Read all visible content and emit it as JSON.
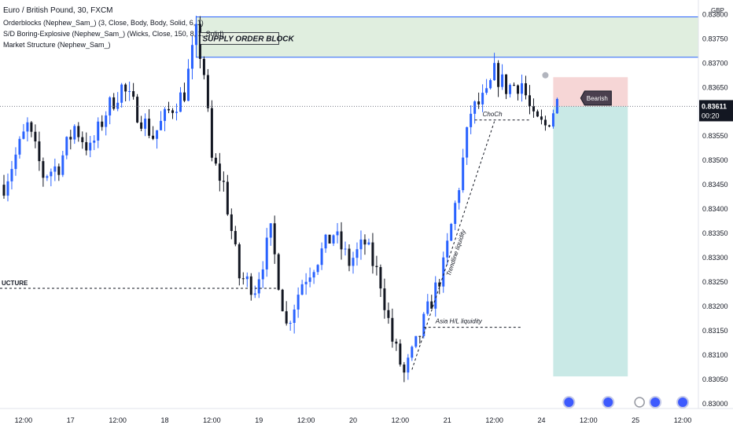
{
  "legend": {
    "title": "Euro / British Pound, 30, FXCM",
    "indicators": [
      "Orderblocks (Nephew_Sam_) (3, Close, Body, Body, Solid, 6, 1)",
      "S/D Boring-Explosive (Nephew_Sam_) (Wicks, Close, 150, 8, 1, Solid)",
      "Market Structure (Nephew_Sam_)"
    ]
  },
  "annotations": {
    "supply_block": "SUPPLY ORDER BLOCK",
    "structure": "UCTURE",
    "choch": "ChoCh",
    "trendline": "Trendline liquidity",
    "asia": "Asia H/L liquidity",
    "bearish": "Bearish"
  },
  "price_axis": {
    "currency": "GBP",
    "current_price": "0.83611",
    "countdown": "00:20"
  },
  "colors": {
    "bull": "#2962ff",
    "bear": "#131722",
    "supply_zone": "#d5e8d4",
    "stop_zone": "#f2c4c4",
    "target_zone": "#b2e0dc",
    "axis_text": "#131722"
  },
  "chart_data": {
    "type": "candlestick",
    "title": "Euro / British Pound, 30, FXCM",
    "y_ticks": [
      0.83,
      0.8305,
      0.831,
      0.8315,
      0.832,
      0.8325,
      0.833,
      0.8335,
      0.834,
      0.8345,
      0.835,
      0.8355,
      0.836,
      0.8365,
      0.837,
      0.8375,
      0.838
    ],
    "y_tick_labels": [
      "0.83000",
      "0.83050",
      "0.83100",
      "0.83150",
      "0.83200",
      "0.83250",
      "0.83300",
      "0.83350",
      "0.83400",
      "0.83450",
      "0.83500",
      "0.83550",
      "0.83600",
      "0.83650",
      "0.83700",
      "0.83750",
      "0.83800"
    ],
    "ylim": [
      0.8299,
      0.8382
    ],
    "x_ticks": [
      {
        "label": "12:00",
        "idx": 5
      },
      {
        "label": "17",
        "idx": 17
      },
      {
        "label": "12:00",
        "idx": 29
      },
      {
        "label": "18",
        "idx": 41
      },
      {
        "label": "12:00",
        "idx": 53
      },
      {
        "label": "19",
        "idx": 65
      },
      {
        "label": "12:00",
        "idx": 77
      },
      {
        "label": "20",
        "idx": 89
      },
      {
        "label": "12:00",
        "idx": 101
      },
      {
        "label": "21",
        "idx": 113
      },
      {
        "label": "12:00",
        "idx": 125
      },
      {
        "label": "24",
        "idx": 137
      },
      {
        "label": "12:00",
        "idx": 149
      },
      {
        "label": "25",
        "idx": 161
      },
      {
        "label": "12:00",
        "idx": 173
      }
    ],
    "x_extent": [
      -1,
      177
    ],
    "price_path": [
      [
        0,
        0.8345
      ],
      [
        6,
        0.8357
      ],
      [
        10,
        0.8347
      ],
      [
        14,
        0.8349
      ],
      [
        18,
        0.8357
      ],
      [
        22,
        0.8352
      ],
      [
        26,
        0.836
      ],
      [
        30,
        0.8365
      ],
      [
        34,
        0.836
      ],
      [
        38,
        0.8355
      ],
      [
        42,
        0.836
      ],
      [
        46,
        0.8364
      ],
      [
        49,
        0.8376
      ],
      [
        51,
        0.8368
      ],
      [
        53,
        0.835
      ],
      [
        56,
        0.8345
      ],
      [
        60,
        0.8326
      ],
      [
        64,
        0.8324
      ],
      [
        68,
        0.8335
      ],
      [
        72,
        0.8316
      ],
      [
        76,
        0.8325
      ],
      [
        80,
        0.833
      ],
      [
        84,
        0.8335
      ],
      [
        88,
        0.8329
      ],
      [
        92,
        0.8333
      ],
      [
        96,
        0.8325
      ],
      [
        99,
        0.8313
      ],
      [
        102,
        0.8306
      ],
      [
        105,
        0.8312
      ],
      [
        108,
        0.8319
      ],
      [
        112,
        0.8328
      ],
      [
        116,
        0.8345
      ],
      [
        119,
        0.836
      ],
      [
        123,
        0.8363
      ],
      [
        125,
        0.8368
      ],
      [
        128,
        0.8365
      ],
      [
        132,
        0.8366
      ],
      [
        135,
        0.8358
      ],
      [
        138,
        0.8357
      ],
      [
        141,
        0.8362
      ]
    ],
    "zones": [
      {
        "name": "supply-order-block",
        "x": [
          49,
          177
        ],
        "y": [
          0.83712,
          0.83795
        ]
      },
      {
        "name": "stop-zone",
        "x": [
          140,
          159
        ],
        "y": [
          0.83611,
          0.83671
        ]
      },
      {
        "name": "target-zone",
        "x": [
          140,
          159
        ],
        "y": [
          0.83056,
          0.83611
        ]
      }
    ],
    "levels": [
      {
        "name": "structure-level",
        "price": 0.83237,
        "x": [
          -1,
          70
        ]
      },
      {
        "name": "asia-liquidity-level",
        "price": 0.83157,
        "x": [
          107,
          132
        ]
      },
      {
        "name": "choch-level",
        "price": 0.83583,
        "x": [
          120,
          134
        ]
      },
      {
        "name": "current-price-line",
        "price": 0.83611,
        "x": [
          -1,
          177
        ]
      }
    ],
    "trendline": {
      "from": [
        104,
        0.8307
      ],
      "to": [
        125,
        0.8358
      ]
    }
  }
}
